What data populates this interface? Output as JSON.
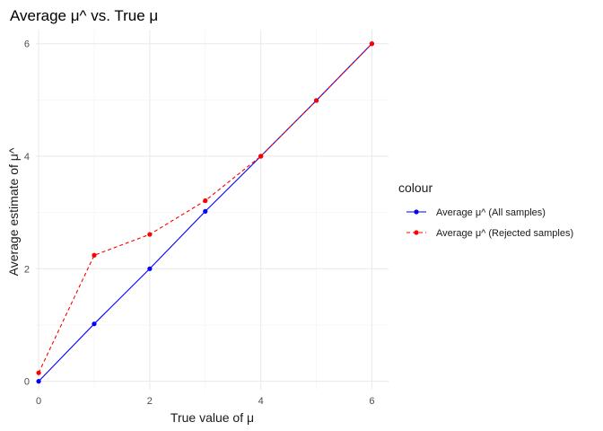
{
  "chart_data": {
    "type": "line",
    "title": "Average μ^ vs. True μ",
    "xlabel": "True value of μ",
    "ylabel": "Average estimate of μ^",
    "xlim": [
      -0.05,
      6.3
    ],
    "ylim": [
      -0.15,
      6.25
    ],
    "x_ticks": [
      0,
      2,
      4,
      6
    ],
    "y_ticks": [
      0,
      2,
      4,
      6
    ],
    "x_minor_ticks": [
      1,
      3,
      5
    ],
    "y_minor_ticks": [
      1,
      3,
      5
    ],
    "grid": true,
    "legend": {
      "title": "colour",
      "position": "right"
    },
    "series": [
      {
        "name": "Average μ^ (All samples)",
        "color": "#0000ff",
        "dash": "solid",
        "marker": "circle",
        "x": [
          0,
          1,
          2,
          3,
          4,
          5,
          6
        ],
        "y": [
          0.0,
          1.02,
          2.0,
          3.02,
          4.0,
          4.99,
          6.0
        ]
      },
      {
        "name": "Average μ^ (Rejected samples)",
        "color": "#ff0000",
        "dash": "dashed",
        "marker": "circle",
        "x": [
          0,
          1,
          2,
          3,
          4,
          5,
          6
        ],
        "y": [
          0.15,
          2.24,
          2.61,
          3.21,
          4.0,
          4.99,
          6.0
        ]
      }
    ]
  }
}
